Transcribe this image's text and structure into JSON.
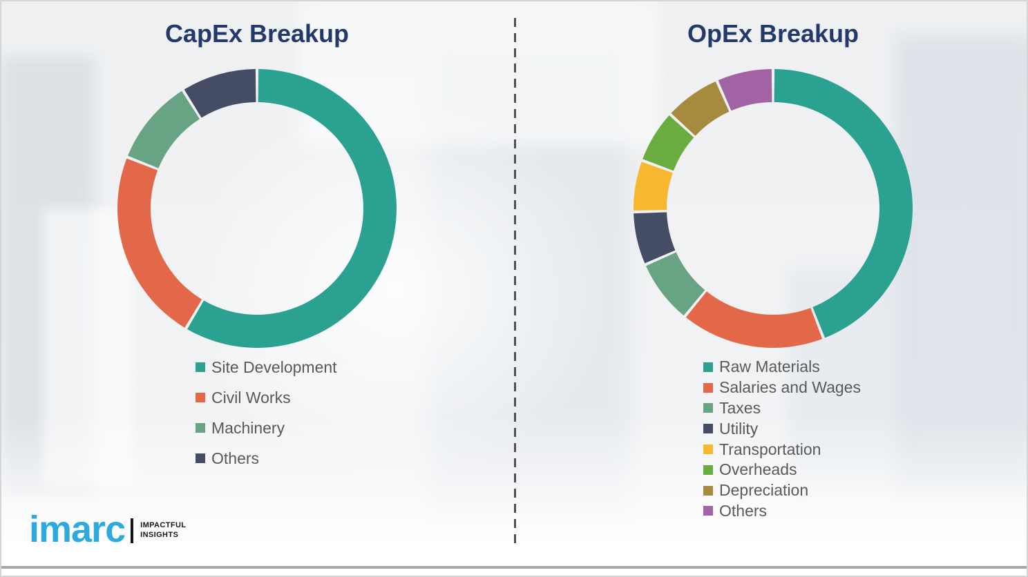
{
  "theme": {
    "title_color": "#24396b",
    "legend_text_color": "#595959",
    "divider_color": "#4f4f4f",
    "background_color": "#f1f2f4"
  },
  "chart_data": [
    {
      "type": "pie",
      "subtype": "donut",
      "title": "CapEx Breakup",
      "labels": [
        "Site Development",
        "Civil Works",
        "Machinery",
        "Others"
      ],
      "values": [
        58.5,
        22.5,
        10.1,
        8.9
      ],
      "colors": [
        "#2aa191",
        "#e3684a",
        "#68a483",
        "#454d66"
      ],
      "start_angle_deg": 0,
      "legend_position": "below-left"
    },
    {
      "type": "pie",
      "subtype": "donut",
      "title": "OpEx Breakup",
      "labels": [
        "Raw Materials",
        "Salaries and Wages",
        "Taxes",
        "Utility",
        "Transportation",
        "Overheads",
        "Depreciation",
        "Others"
      ],
      "values": [
        44.1,
        16.8,
        7.5,
        6.2,
        6.0,
        6.2,
        6.6,
        6.6
      ],
      "colors": [
        "#2aa191",
        "#e3684a",
        "#68a483",
        "#454d66",
        "#f7b72f",
        "#6bac40",
        "#a68b3f",
        "#a263a5"
      ],
      "start_angle_deg": 0,
      "legend_position": "below-left"
    }
  ],
  "logo": {
    "brand": "imarc",
    "brand_color": "#2ea9e0",
    "tagline_line1": "IMPACTFUL",
    "tagline_line2": "INSIGHTS"
  }
}
